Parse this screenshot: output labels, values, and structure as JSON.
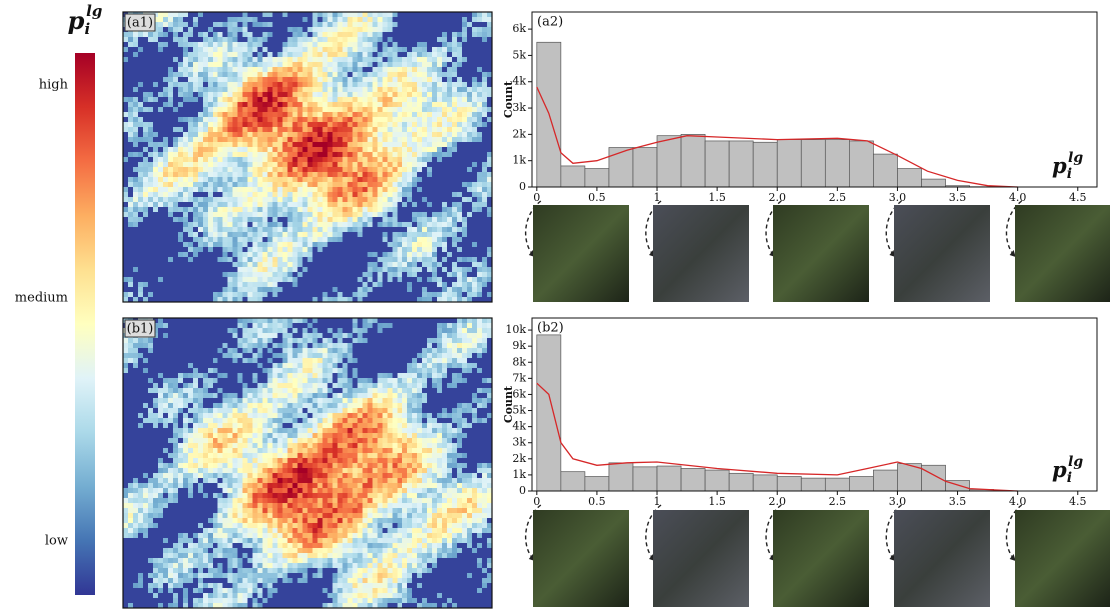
{
  "colorbar": {
    "symbol": "p",
    "sub": "i",
    "sup": "lg",
    "labels": [
      "high",
      "medium",
      "low"
    ]
  },
  "maps": [
    {
      "label": "(a1)"
    },
    {
      "label": "(b1)"
    }
  ],
  "chart_data": [
    {
      "type": "histogram",
      "panel_label": "(a2)",
      "ylabel": "Count",
      "xlabel": {
        "symbol": "p",
        "sub": "i",
        "sup": "lg"
      },
      "bins": [
        0,
        0.2,
        0.4,
        0.6,
        0.8,
        1.0,
        1.2,
        1.4,
        1.6,
        1.8,
        2.0,
        2.2,
        2.4,
        2.6,
        2.8,
        3.0,
        3.2,
        3.4,
        3.6,
        3.8
      ],
      "values": [
        5500,
        800,
        700,
        1500,
        1500,
        1950,
        2000,
        1750,
        1750,
        1700,
        1800,
        1800,
        1800,
        1750,
        1250,
        700,
        300,
        50,
        10
      ],
      "color": "#c0c0c0",
      "edgecolor": "#555555",
      "density_curve": {
        "color": "#d62728",
        "x": [
          0,
          0.1,
          0.2,
          0.3,
          0.5,
          0.75,
          1.0,
          1.25,
          1.5,
          2.0,
          2.5,
          2.75,
          3.0,
          3.25,
          3.5,
          3.75,
          4.0
        ],
        "values": [
          3800,
          2800,
          1300,
          900,
          1000,
          1400,
          1700,
          1950,
          1900,
          1800,
          1850,
          1750,
          1200,
          600,
          250,
          50,
          0
        ]
      },
      "xlim": [
        -0.04,
        4.66
      ],
      "ylim": [
        0,
        6650
      ],
      "xticks": [
        0,
        0.5,
        1,
        1.5,
        {
          "value": 2,
          "label": "2.0"
        },
        2.5,
        {
          "value": 3,
          "label": "3.0"
        },
        3.5,
        {
          "value": 4,
          "label": "4.0"
        },
        4.5
      ],
      "yticks": [
        0,
        {
          "value": 1000,
          "label": "1k"
        },
        {
          "value": 2000,
          "label": "2k"
        },
        {
          "value": 3000,
          "label": "3k"
        },
        {
          "value": 4000,
          "label": "4k"
        },
        {
          "value": 5000,
          "label": "5k"
        },
        {
          "value": 6000,
          "label": "6k"
        }
      ]
    },
    {
      "type": "histogram",
      "panel_label": "(b2)",
      "ylabel": "Count",
      "xlabel": {
        "symbol": "p",
        "sub": "i",
        "sup": "lg"
      },
      "bins": [
        0,
        0.2,
        0.4,
        0.6,
        0.8,
        1.0,
        1.2,
        1.4,
        1.6,
        1.8,
        2.0,
        2.2,
        2.4,
        2.6,
        2.8,
        3.0,
        3.2,
        3.4,
        3.6,
        3.8
      ],
      "values": [
        9700,
        1200,
        900,
        1750,
        1500,
        1550,
        1400,
        1300,
        1100,
        1000,
        900,
        800,
        800,
        900,
        1300,
        1700,
        1600,
        650,
        100
      ],
      "color": "#c0c0c0",
      "edgecolor": "#555555",
      "density_curve": {
        "color": "#d62728",
        "x": [
          0,
          0.1,
          0.2,
          0.3,
          0.5,
          0.75,
          1.0,
          1.5,
          2.0,
          2.5,
          2.75,
          3.0,
          3.2,
          3.4,
          3.6,
          4.0
        ],
        "values": [
          6700,
          6000,
          3000,
          2000,
          1600,
          1750,
          1800,
          1400,
          1100,
          1000,
          1400,
          1800,
          1400,
          600,
          150,
          0
        ]
      },
      "xlim": [
        -0.04,
        4.66
      ],
      "ylim": [
        0,
        10750
      ],
      "xticks": [
        0,
        0.5,
        1,
        1.5,
        {
          "value": 2,
          "label": "2.0"
        },
        2.5,
        {
          "value": 3,
          "label": "3.0"
        },
        3.5,
        {
          "value": 4,
          "label": "4.0"
        },
        4.5
      ],
      "yticks": [
        0,
        {
          "value": 1000,
          "label": "1k"
        },
        {
          "value": 2000,
          "label": "2k"
        },
        {
          "value": 3000,
          "label": "3k"
        },
        {
          "value": 4000,
          "label": "4k"
        },
        {
          "value": 5000,
          "label": "5k"
        },
        {
          "value": 6000,
          "label": "6k"
        },
        {
          "value": 7000,
          "label": "7k"
        },
        {
          "value": 8000,
          "label": "8k"
        },
        {
          "value": 9000,
          "label": "9k"
        },
        {
          "value": 10000,
          "label": "10k"
        }
      ]
    }
  ]
}
